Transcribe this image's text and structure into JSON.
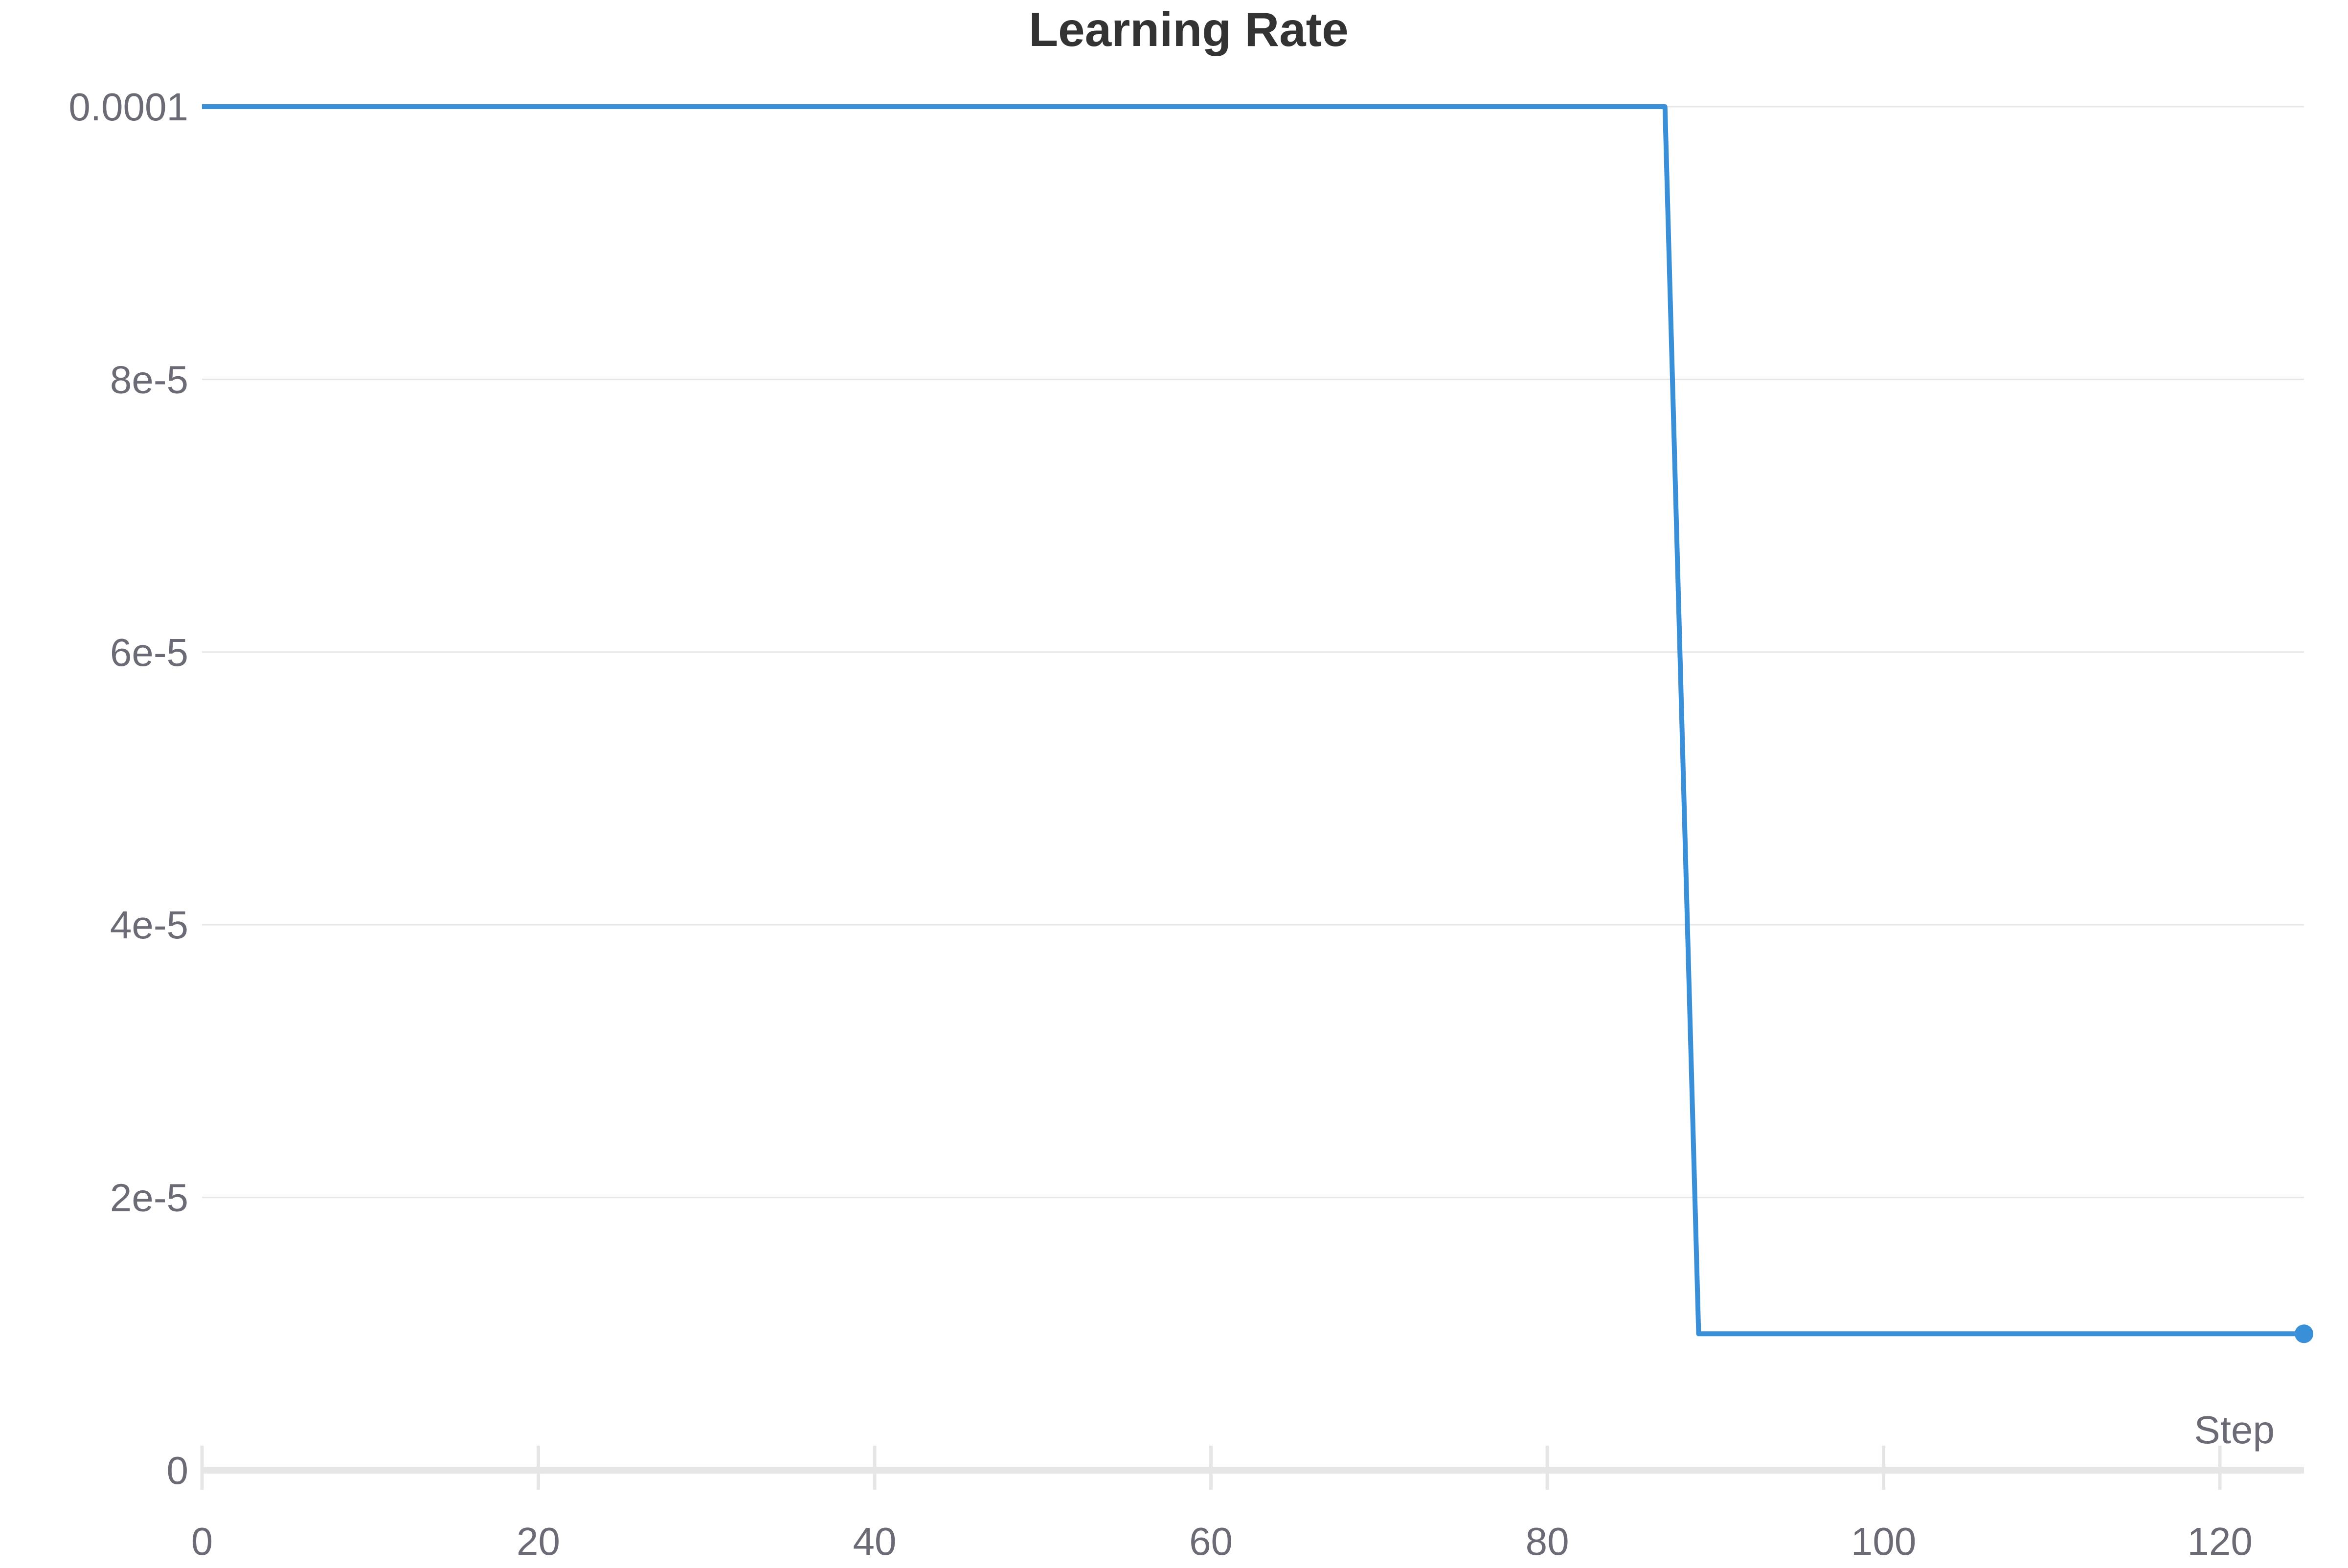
{
  "chart_data": {
    "type": "line",
    "title": "Learning Rate",
    "xlabel": "Step",
    "ylabel": "",
    "xlim": [
      0,
      125
    ],
    "ylim": [
      0,
      0.0001
    ],
    "grid": true,
    "legend": "none",
    "x_ticks": [
      {
        "value": 0,
        "label": "0"
      },
      {
        "value": 20,
        "label": "20"
      },
      {
        "value": 40,
        "label": "40"
      },
      {
        "value": 60,
        "label": "60"
      },
      {
        "value": 80,
        "label": "80"
      },
      {
        "value": 100,
        "label": "100"
      },
      {
        "value": 120,
        "label": "120"
      }
    ],
    "y_ticks": [
      {
        "value": 0,
        "label": "0"
      },
      {
        "value": 2e-05,
        "label": "2e-5"
      },
      {
        "value": 4e-05,
        "label": "4e-5"
      },
      {
        "value": 6e-05,
        "label": "6e-5"
      },
      {
        "value": 8e-05,
        "label": "8e-5"
      },
      {
        "value": 0.0001,
        "label": "0.0001"
      }
    ],
    "series": [
      {
        "color": "#3a8fd9",
        "x": [
          0,
          87,
          89,
          125
        ],
        "y": [
          0.0001,
          0.0001,
          1e-05,
          1e-05
        ],
        "end_marker": true
      }
    ]
  }
}
